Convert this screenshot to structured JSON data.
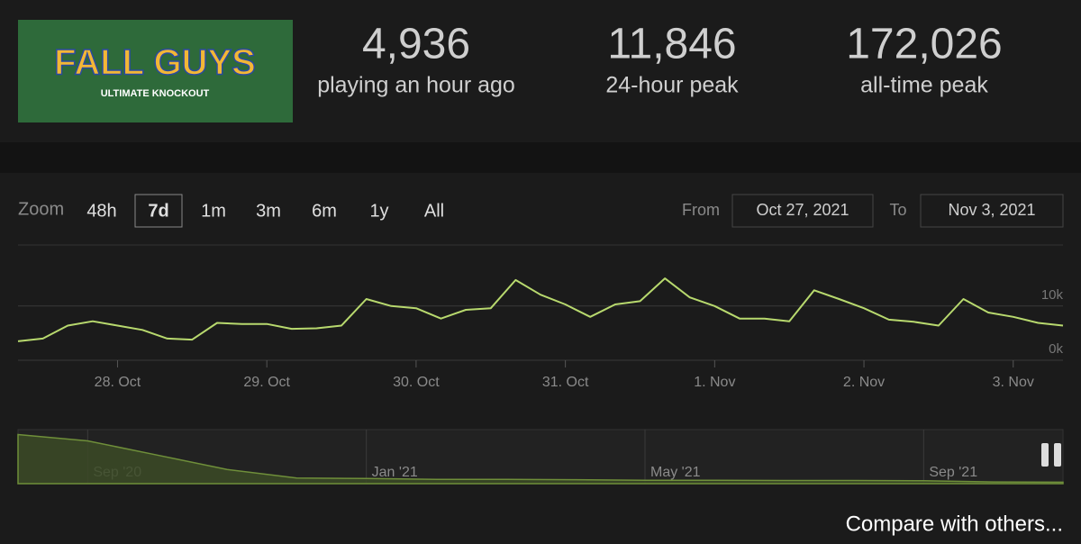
{
  "header": {
    "logo": {
      "title": "FALL GUYS",
      "subtitle": "ULTIMATE KNOCKOUT"
    },
    "stats": [
      {
        "value": "4,936",
        "label": "playing an hour ago"
      },
      {
        "value": "11,846",
        "label": "24-hour peak"
      },
      {
        "value": "172,026",
        "label": "all-time peak"
      }
    ]
  },
  "zoom": {
    "label": "Zoom",
    "buttons": [
      "48h",
      "7d",
      "1m",
      "3m",
      "6m",
      "1y",
      "All"
    ],
    "selected": 1
  },
  "range": {
    "from_label": "From",
    "from": "Oct 27, 2021",
    "to_label": "To",
    "to": "Nov 3, 2021"
  },
  "chart_data": [
    {
      "type": "line",
      "color": "#b8d96e",
      "categories": [
        null,
        null,
        null,
        null,
        "28. Oct",
        null,
        null,
        null,
        null,
        null,
        "29. Oct",
        null,
        null,
        null,
        null,
        null,
        "30. Oct",
        null,
        null,
        null,
        null,
        null,
        "31. Oct",
        null,
        null,
        null,
        null,
        null,
        "1. Nov",
        null,
        null,
        null,
        null,
        null,
        "2. Nov",
        null,
        null,
        null,
        null,
        null,
        "3. Nov",
        null,
        null
      ],
      "values": [
        3500,
        4000,
        6400,
        7200,
        6400,
        5600,
        4000,
        3800,
        6900,
        6700,
        6700,
        5800,
        5900,
        6400,
        11300,
        10000,
        9600,
        7700,
        9300,
        9600,
        14800,
        12100,
        10300,
        8000,
        10300,
        10900,
        15100,
        11600,
        10000,
        7700,
        7700,
        7200,
        12900,
        11300,
        9600,
        7500,
        7100,
        6400,
        11300,
        8800,
        8000,
        6900,
        6400
      ],
      "ylim": [
        0,
        20600
      ],
      "yticks": [
        {
          "value": 0,
          "label": "0k"
        },
        {
          "value": 10000,
          "label": "10k"
        }
      ],
      "grid": true
    },
    {
      "type": "area",
      "color": "#6f8f3a",
      "categories": [
        null,
        "Sep '20",
        null,
        null,
        null,
        "Jan '21",
        null,
        null,
        null,
        "May '21",
        null,
        null,
        null,
        "Sep '21",
        null,
        null
      ],
      "values": [
        172000,
        150000,
        100000,
        50000,
        20000,
        18000,
        15000,
        15000,
        14000,
        12000,
        12000,
        11000,
        11000,
        10000,
        6000,
        5000
      ],
      "ylim": [
        0,
        180000
      ]
    }
  ],
  "footer": {
    "link": "Compare with others..."
  }
}
